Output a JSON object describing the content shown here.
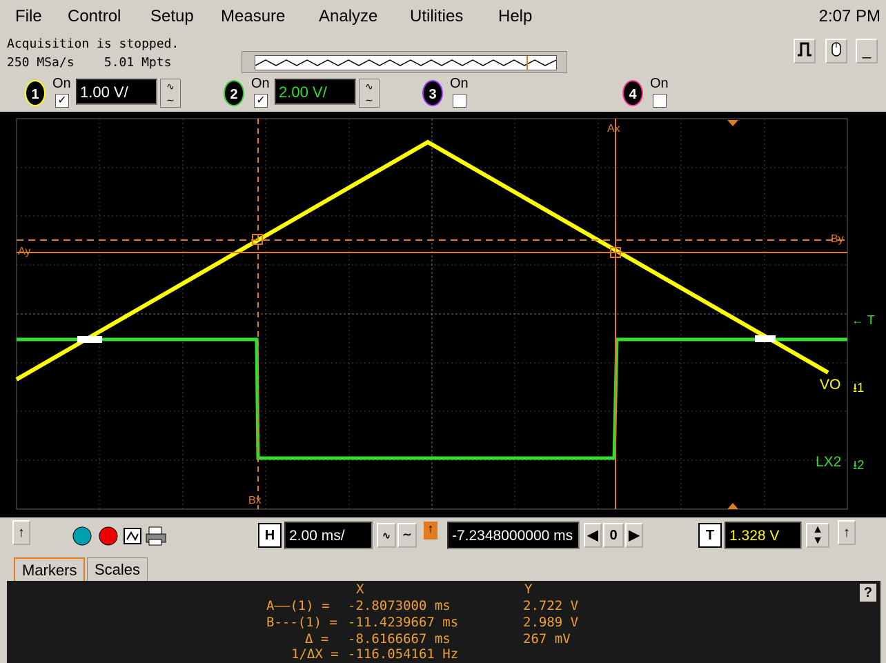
{
  "menu": {
    "items": [
      "File",
      "Control",
      "Setup",
      "Measure",
      "Analyze",
      "Utilities",
      "Help"
    ],
    "clock": "2:07 PM"
  },
  "status": {
    "line1": "Acquisition is stopped.",
    "line2": "250 MSa/s    5.01 Mpts"
  },
  "channels": [
    {
      "num": "1",
      "on_label": "On",
      "checked": true,
      "scale": "1.00 V/",
      "color": "#ffff00"
    },
    {
      "num": "2",
      "on_label": "On",
      "checked": true,
      "scale": "2.00 V/",
      "color": "#33cc33"
    },
    {
      "num": "3",
      "on_label": "On",
      "checked": false,
      "color": "#9933ff"
    },
    {
      "num": "4",
      "on_label": "On",
      "checked": false,
      "color": "#ff3399"
    }
  ],
  "scope": {
    "labels": {
      "ax": "Ax",
      "bx": "Bx",
      "ay": "Ay",
      "by": "By",
      "trigger": "← T",
      "vo": "VO",
      "lx2": "LX2",
      "ch1_marker": "⭳1",
      "ch2_marker": "⭳2"
    },
    "colors": {
      "ch1": "#ffff00",
      "ch2": "#33dd33",
      "marker": "#e07b20",
      "grid": "#555555"
    }
  },
  "toolbar": {
    "horizontal_label": "H",
    "horizontal_scale": "2.00 ms/",
    "delay": "-7.2348000000 ms",
    "delay_zero": "0",
    "trigger_label": "T",
    "trigger_level": "1.328 V"
  },
  "tabs": {
    "markers": "Markers",
    "scales": "Scales"
  },
  "markers": {
    "header_x": "X",
    "header_y": "Y",
    "rows": [
      {
        "label": "A——(1) =",
        "x": "-2.8073000 ms",
        "y": "2.722 V"
      },
      {
        "label": "B---(1) =",
        "x": "-11.4239667 ms",
        "y": "2.989 V"
      },
      {
        "label": "Δ =",
        "x": "-8.6166667 ms",
        "y": "267 mV"
      },
      {
        "label": "1/ΔX =",
        "x": "-116.054161 Hz",
        "y": ""
      }
    ],
    "help": "?"
  }
}
